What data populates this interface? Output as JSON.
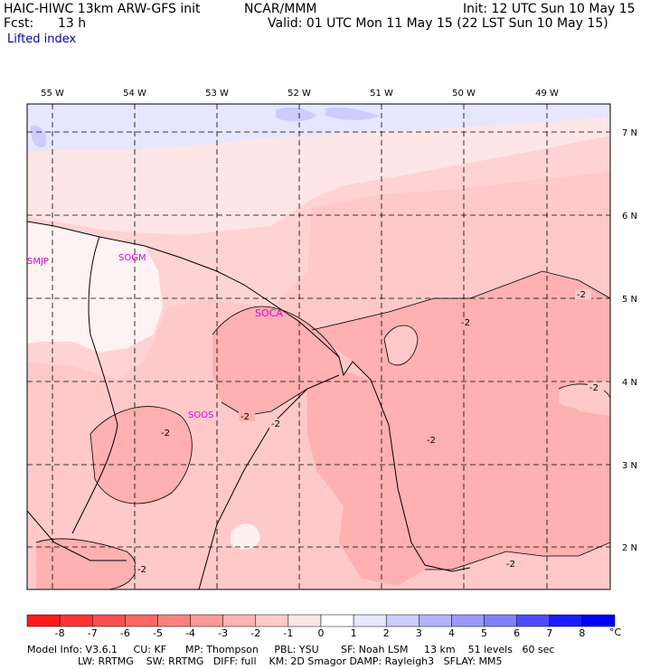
{
  "header": {
    "model": "HAIC-HIWC 13km ARW-GFS init",
    "org": "NCAR/MMM",
    "init": "Init: 12 UTC Sun 10 May 15",
    "fcst_label": "Fcst:",
    "fcst_value": "13 h",
    "valid": "Valid: 01 UTC Mon 11 May 15 (22 LST Sun 10 May 15)",
    "field": "Lifted index"
  },
  "map": {
    "lon_labels": [
      "55 W",
      "54 W",
      "53 W",
      "52 W",
      "51 W",
      "50 W",
      "49 W"
    ],
    "lat_labels": [
      "7 N",
      "6 N",
      "5 N",
      "4 N",
      "3 N",
      "2 N"
    ],
    "stations": [
      "SMJP",
      "SOGM",
      "SOCA",
      "SOOS"
    ],
    "contour_labels": [
      "-2",
      "-2",
      "-2",
      "-2",
      "-2",
      "-2",
      "-2",
      "-2",
      "-2",
      "-2"
    ]
  },
  "colorbar": {
    "ticks": [
      "-8",
      "-7",
      "-6",
      "-5",
      "-4",
      "-3",
      "-2",
      "-1",
      "0",
      "1",
      "2",
      "3",
      "4",
      "5",
      "6",
      "7",
      "8"
    ],
    "unit": "°C",
    "colors": [
      "#ff1a1a",
      "#ff3333",
      "#ff4d4d",
      "#ff6666",
      "#ff8080",
      "#ff9999",
      "#ffb3b3",
      "#ffcccc",
      "#ffe6e6",
      "#ffffff",
      "#e6e6ff",
      "#ccccff",
      "#b3b3ff",
      "#9999ff",
      "#8080ff",
      "#4d4dff",
      "#1a1aff",
      "#0000ff"
    ]
  },
  "footer": {
    "line1": "Model Info: V3.6.1     CU: KF      MP: Thompson     PBL: YSU       SF: Noah LSM     13 km    51 levels   60 sec",
    "line2": "                LW: RRTMG    SW: RRTMG   DIFF: full    KM: 2D Smagor DAMP: Rayleigh3   SFLAY: MM5"
  }
}
